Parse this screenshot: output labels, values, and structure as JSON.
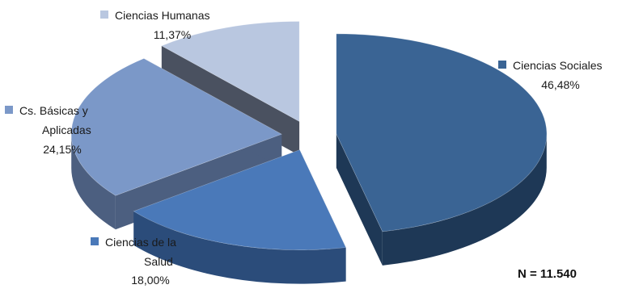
{
  "chart_data": {
    "type": "pie",
    "style": "3d-exploded",
    "slices": [
      {
        "label": "Ciencias Sociales",
        "label_lines": [
          "Ciencias Sociales"
        ],
        "pct_text": "46,48%",
        "value": 46.48,
        "color": "#3a6494",
        "side": "#1e3856",
        "marker": "#3a6494"
      },
      {
        "label": "Ciencias de la Salud",
        "label_lines": [
          "Ciencias de la",
          "Salud"
        ],
        "pct_text": "18,00%",
        "value": 18.0,
        "color": "#4a79b9",
        "side": "#2b4c7a",
        "marker": "#4a79b9"
      },
      {
        "label": "Cs. Básicas y Aplicadas",
        "label_lines": [
          "Cs. Básicas y",
          "Aplicadas"
        ],
        "pct_text": "24,15%",
        "value": 24.15,
        "color": "#7b98c8",
        "side": "#4c5f80",
        "marker": "#7b98c8"
      },
      {
        "label": "Ciencias Humanas",
        "label_lines": [
          "Ciencias Humanas"
        ],
        "pct_text": "11,37%",
        "value": 11.37,
        "color": "#b9c7e0",
        "side": "#4a5160",
        "marker": "#b9c7e0"
      }
    ],
    "annotation": "N = 11.540",
    "legend": "none"
  }
}
